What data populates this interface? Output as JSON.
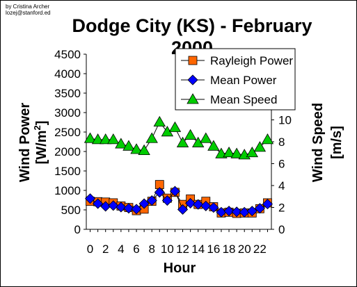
{
  "credit": {
    "line1": "by Cristina Archer",
    "line2": "lozej@stanford.ed"
  },
  "chart_data": {
    "type": "line",
    "title": "Dodge City (KS) - February 2000",
    "xlabel": "Hour",
    "ylabel_left": "Wind Power [W/m²]",
    "ylabel_left_main": "Wind Power",
    "ylabel_left_unit": "[W/m",
    "ylabel_left_sup": "2",
    "ylabel_left_close": "]",
    "ylabel_right": "Wind Speed [m/s]",
    "ylabel_right_main": "Wind Speed",
    "ylabel_right_unit": "[m/s]",
    "x": [
      0,
      1,
      2,
      3,
      4,
      5,
      6,
      7,
      8,
      9,
      10,
      11,
      12,
      13,
      14,
      15,
      16,
      17,
      18,
      19,
      20,
      21,
      22,
      23
    ],
    "x_tick_labels": [
      "0",
      "2",
      "4",
      "6",
      "8",
      "10",
      "12",
      "14",
      "16",
      "18",
      "20",
      "22"
    ],
    "x_tick_values": [
      0,
      2,
      4,
      6,
      8,
      10,
      12,
      14,
      16,
      18,
      20,
      22
    ],
    "xlim": [
      -0.5,
      23.5
    ],
    "ylim_left": [
      0,
      4500
    ],
    "y_ticks_left": [
      0,
      500,
      1000,
      1500,
      2000,
      2500,
      3000,
      3500,
      4000,
      4500
    ],
    "ylim_right": [
      0,
      16
    ],
    "y_ticks_right": [
      0,
      2,
      4,
      6,
      8,
      10
    ],
    "grid": false,
    "legend_placement": "top-right",
    "series": [
      {
        "name": "Rayleigh Power",
        "axis": "left",
        "marker": "square",
        "color": "#ff6600",
        "values": [
          720,
          710,
          700,
          680,
          600,
          560,
          480,
          520,
          720,
          1150,
          800,
          950,
          640,
          780,
          640,
          720,
          580,
          420,
          440,
          410,
          420,
          420,
          530,
          680
        ]
      },
      {
        "name": "Mean Power",
        "axis": "left",
        "marker": "diamond",
        "color": "#0000ff",
        "values": [
          790,
          660,
          590,
          610,
          570,
          540,
          520,
          660,
          740,
          950,
          740,
          980,
          510,
          670,
          640,
          600,
          560,
          440,
          470,
          450,
          440,
          470,
          540,
          650
        ]
      },
      {
        "name": "Mean Speed",
        "axis": "right",
        "marker": "triangle",
        "color": "#00cc00",
        "values": [
          8.3,
          8.2,
          8.2,
          8.2,
          7.8,
          7.6,
          7.3,
          7.2,
          8.3,
          9.8,
          8.9,
          9.3,
          7.9,
          8.6,
          7.9,
          8.3,
          7.6,
          6.9,
          7.0,
          6.9,
          6.8,
          7.0,
          7.5,
          8.2
        ]
      }
    ]
  }
}
